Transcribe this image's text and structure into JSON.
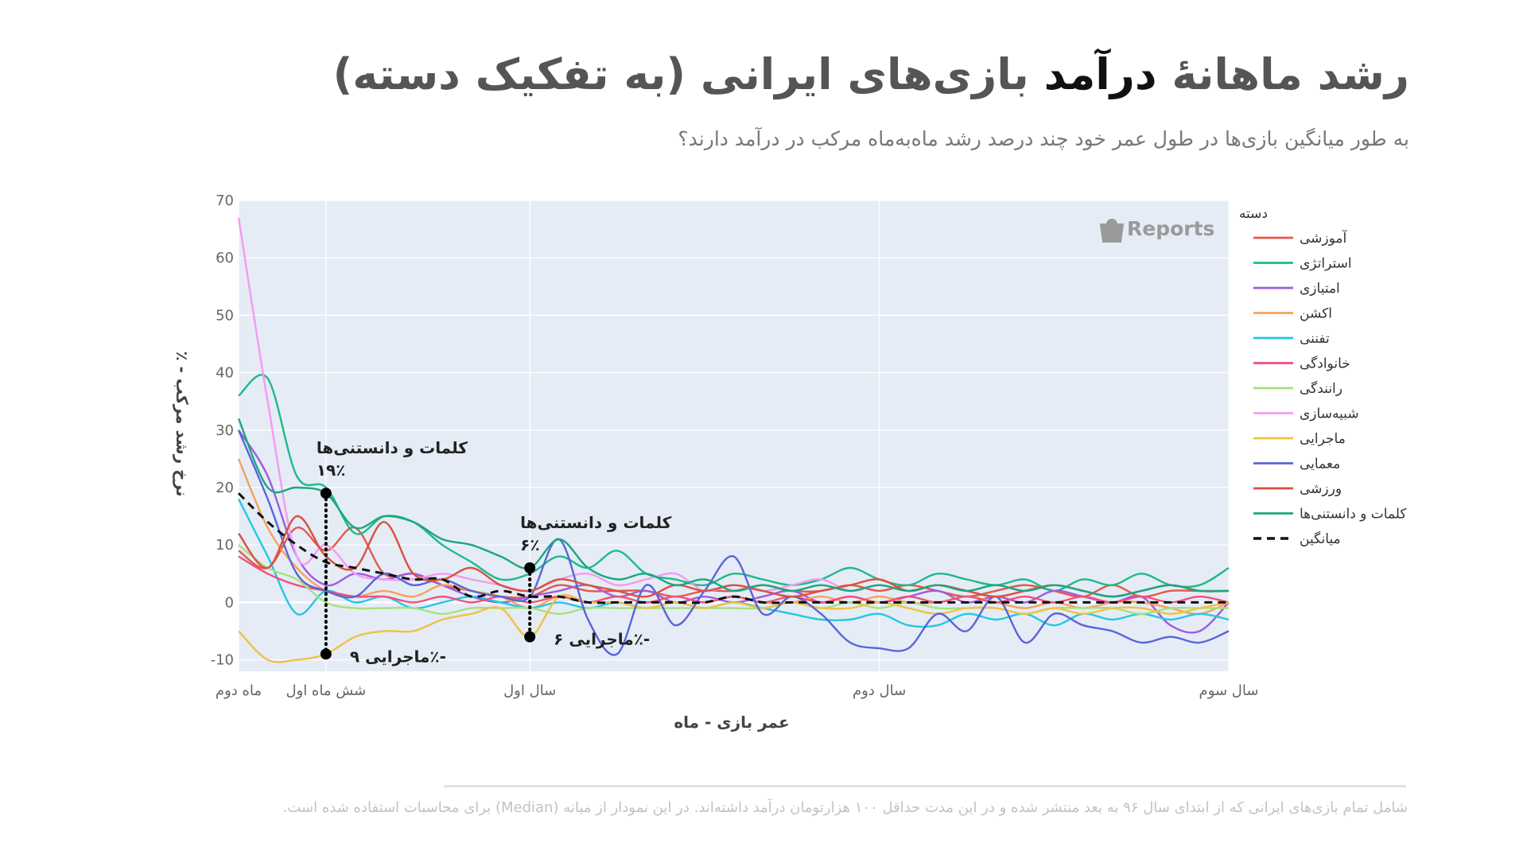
{
  "title": {
    "before": "رشد ماهانهٔ ",
    "emphasis": "درآمد",
    "after": " بازی‌های ایرانی (به تفکیک دسته)"
  },
  "subtitle": "به طور میانگین بازی‌ها در طول عمر خود چند درصد رشد ماه‌به‌ماه مرکب در درآمد دارند؟",
  "footnote": "شامل تمام بازی‌های ایرانی که از ابتدای سال ۹۶ به بعد منتشر شده و در این مدت حداقل ۱۰۰ هزارتومان درآمد داشته‌اند. در این نمودار از میانه (Median) برای محاسبات استفاده شده است.",
  "watermark": "Reports",
  "colors": {
    "plot_bg": "#e5ecf6",
    "grid": "#ffffff"
  },
  "chart_data": {
    "type": "line",
    "title": "",
    "xlabel": "عمر بازی - ماه",
    "ylabel": "٪ - نرخ رشد مرکب",
    "ylim": [
      -12,
      70
    ],
    "xlim": [
      2,
      36
    ],
    "yticks": [
      -10,
      0,
      10,
      20,
      30,
      40,
      50,
      60,
      70
    ],
    "xticks": [
      {
        "value": 2,
        "label": "ماه دوم"
      },
      {
        "value": 5,
        "label": "شش ماه اول"
      },
      {
        "value": 12,
        "label": "سال اول"
      },
      {
        "value": 24,
        "label": "سال دوم"
      },
      {
        "value": 36,
        "label": "سال سوم"
      }
    ],
    "legend_title": "دسته",
    "legend_position": "right",
    "x": [
      2,
      3,
      4,
      5,
      6,
      7,
      8,
      9,
      10,
      11,
      12,
      13,
      14,
      15,
      16,
      17,
      18,
      19,
      20,
      21,
      22,
      23,
      24,
      25,
      26,
      27,
      28,
      29,
      30,
      31,
      32,
      33,
      34,
      35,
      36
    ],
    "series": [
      {
        "name": "آموزشی",
        "color": "#e4584b",
        "dash": false,
        "values": [
          9,
          6,
          13,
          9,
          13,
          5,
          5,
          3,
          2,
          1,
          1,
          3,
          2,
          2,
          2,
          1,
          2,
          2,
          3,
          2,
          2,
          3,
          2,
          3,
          2,
          1,
          2,
          3,
          2,
          1,
          3,
          1,
          2,
          2,
          2
        ]
      },
      {
        "name": "استراتژی",
        "color": "#1fb98b",
        "dash": false,
        "values": [
          36,
          39,
          22,
          20,
          12,
          15,
          14,
          10,
          7,
          4,
          5,
          8,
          6,
          9,
          5,
          4,
          3,
          5,
          4,
          3,
          4,
          6,
          4,
          3,
          5,
          4,
          3,
          4,
          2,
          4,
          3,
          5,
          3,
          3,
          6
        ]
      },
      {
        "name": "امتیازی",
        "color": "#a05be0",
        "dash": false,
        "values": [
          30,
          22,
          8,
          3,
          5,
          4,
          5,
          3,
          1,
          0,
          1,
          2,
          3,
          1,
          2,
          0,
          1,
          0,
          1,
          2,
          0,
          1,
          0,
          1,
          2,
          0,
          1,
          0,
          2,
          1,
          0,
          1,
          -4,
          -5,
          0
        ]
      },
      {
        "name": "اکشن",
        "color": "#f5a25d",
        "dash": false,
        "values": [
          25,
          13,
          6,
          2,
          1,
          2,
          1,
          3,
          2,
          1,
          -1,
          1,
          0,
          1,
          0,
          1,
          0,
          1,
          0,
          0,
          1,
          0,
          1,
          0,
          0,
          1,
          0,
          -1,
          0,
          -1,
          0,
          0,
          -1,
          -2,
          0
        ]
      },
      {
        "name": "تفننی",
        "color": "#24c8e0",
        "dash": false,
        "values": [
          18,
          8,
          -2,
          2,
          0,
          1,
          -1,
          0,
          1,
          0,
          -1,
          0,
          -1,
          0,
          -1,
          0,
          -1,
          0,
          -1,
          -2,
          -3,
          -3,
          -2,
          -4,
          -4,
          -2,
          -3,
          -2,
          -4,
          -2,
          -3,
          -2,
          -3,
          -2,
          -3
        ]
      },
      {
        "name": "خانوادگی",
        "color": "#f24f7a",
        "dash": false,
        "values": [
          8,
          5,
          3,
          2,
          1,
          1,
          0,
          1,
          0,
          1,
          0,
          1,
          0,
          1,
          0,
          1,
          0,
          1,
          0,
          1,
          0,
          1,
          0,
          1,
          0,
          1,
          0,
          1,
          0,
          1,
          0,
          1,
          0,
          1,
          0
        ]
      },
      {
        "name": "رانندگی",
        "color": "#a6e17c",
        "dash": false,
        "values": [
          10,
          6,
          4,
          0,
          -1,
          -1,
          -1,
          -2,
          -1,
          -1,
          -1,
          -2,
          -1,
          -1,
          -1,
          -1,
          -1,
          -1,
          -1,
          0,
          -1,
          0,
          -1,
          0,
          -1,
          -1,
          -1,
          -2,
          -1,
          -1,
          -1,
          -2,
          -1,
          -1,
          -1
        ]
      },
      {
        "name": "شبیه‌سازی",
        "color": "#f59af0",
        "dash": false,
        "values": [
          67,
          35,
          8,
          10,
          5,
          4,
          4,
          5,
          4,
          3,
          2,
          4,
          5,
          3,
          4,
          5,
          2,
          3,
          2,
          3,
          4,
          2,
          3,
          2,
          3,
          2,
          1,
          2,
          3,
          2,
          1,
          2,
          3,
          2,
          2
        ]
      },
      {
        "name": "ماجرایی",
        "color": "#f2c043",
        "dash": false,
        "values": [
          -5,
          -10,
          -10,
          -9,
          -6,
          -5,
          -5,
          -3,
          -2,
          -1,
          -6,
          1,
          0,
          0,
          -1,
          0,
          -1,
          0,
          -1,
          0,
          -1,
          -1,
          0,
          -1,
          -2,
          -1,
          -1,
          -2,
          -1,
          -2,
          -1,
          -1,
          -2,
          -1,
          0
        ]
      },
      {
        "name": "معمایی",
        "color": "#5965d9",
        "dash": false,
        "values": [
          30,
          18,
          5,
          2,
          1,
          5,
          3,
          4,
          2,
          1,
          1,
          11,
          -3,
          -9,
          3,
          -4,
          2,
          8,
          -2,
          1,
          -2,
          -7,
          -8,
          -8,
          -2,
          -5,
          1,
          -7,
          -2,
          -4,
          -5,
          -7,
          -6,
          -7,
          -5
        ]
      },
      {
        "name": "ورزشی",
        "color": "#d8523b",
        "dash": false,
        "values": [
          12,
          6,
          15,
          8,
          6,
          14,
          5,
          4,
          6,
          3,
          2,
          4,
          3,
          2,
          1,
          3,
          2,
          3,
          2,
          1,
          2,
          3,
          4,
          2,
          3,
          2,
          1,
          2,
          3,
          2,
          1,
          2,
          3,
          2,
          2
        ]
      },
      {
        "name": "کلمات و دانستنی‌ها",
        "color": "#1aa87d",
        "dash": false,
        "values": [
          32,
          20,
          20,
          19,
          13,
          15,
          14,
          11,
          10,
          8,
          6,
          11,
          6,
          4,
          5,
          3,
          4,
          2,
          3,
          2,
          3,
          2,
          3,
          2,
          3,
          2,
          3,
          2,
          3,
          2,
          1,
          2,
          3,
          2,
          2
        ]
      },
      {
        "name": "میانگین",
        "color": "#111111",
        "dash": true,
        "values": [
          19,
          14,
          10,
          7,
          6,
          5,
          4,
          4,
          1,
          2,
          1,
          1,
          0,
          0,
          0,
          0,
          0,
          1,
          0,
          0,
          0,
          0,
          0,
          0,
          0,
          0,
          0,
          0,
          0,
          0,
          0,
          0,
          0,
          0,
          0
        ]
      }
    ],
    "annotations": [
      {
        "x": 5,
        "y_top": 19,
        "y_bottom": -9,
        "top_label": "کلمات و دانستنی‌ها",
        "top_value": "۱۹٪",
        "bottom_label": "ماجرایی ۹٪-"
      },
      {
        "x": 12,
        "y_top": 6,
        "y_bottom": -6,
        "top_label": "کلمات و دانستنی‌ها",
        "top_value": "۶٪",
        "bottom_label": "ماجرایی ۶٪-"
      }
    ]
  }
}
